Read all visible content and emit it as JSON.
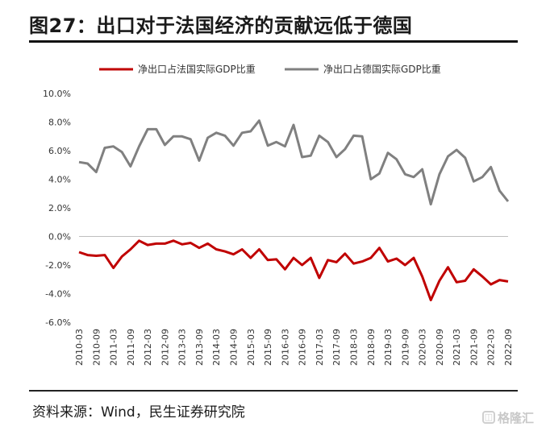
{
  "title": "图27：出口对于法国经济的贡献远低于德国",
  "source": "资料来源：Wind，民生证券研究院",
  "watermark": "格隆汇",
  "colors": {
    "france": "#c00000",
    "germany": "#808080",
    "axis": "#bfbfbf"
  },
  "chart_data": {
    "type": "line",
    "title": "",
    "xlabel": "",
    "ylabel": "",
    "ylim": [
      -6.0,
      10.0
    ],
    "yticks": [
      "10.0%",
      "8.0%",
      "6.0%",
      "4.0%",
      "2.0%",
      "0.0%",
      "-2.0%",
      "-4.0%",
      "-6.0%"
    ],
    "xtick_labels": [
      "2010-03",
      "2010-09",
      "2011-03",
      "2011-09",
      "2012-03",
      "2012-09",
      "2013-03",
      "2013-09",
      "2014-03",
      "2014-09",
      "2015-03",
      "2015-09",
      "2016-03",
      "2016-09",
      "2017-03",
      "2017-09",
      "2018-03",
      "2018-09",
      "2019-03",
      "2019-09",
      "2020-03",
      "2020-09",
      "2021-03",
      "2021-09",
      "2022-03",
      "2022-09"
    ],
    "x": [
      "2010-03",
      "2010-06",
      "2010-09",
      "2010-12",
      "2011-03",
      "2011-06",
      "2011-09",
      "2011-12",
      "2012-03",
      "2012-06",
      "2012-09",
      "2012-12",
      "2013-03",
      "2013-06",
      "2013-09",
      "2013-12",
      "2014-03",
      "2014-06",
      "2014-09",
      "2014-12",
      "2015-03",
      "2015-06",
      "2015-09",
      "2015-12",
      "2016-03",
      "2016-06",
      "2016-09",
      "2016-12",
      "2017-03",
      "2017-06",
      "2017-09",
      "2017-12",
      "2018-03",
      "2018-06",
      "2018-09",
      "2018-12",
      "2019-03",
      "2019-06",
      "2019-09",
      "2019-12",
      "2020-03",
      "2020-06",
      "2020-09",
      "2020-12",
      "2021-03",
      "2021-06",
      "2021-09",
      "2021-12",
      "2022-03",
      "2022-06",
      "2022-09"
    ],
    "legend_position": "top",
    "grid": false,
    "series": [
      {
        "name": "净出口占法国实际GDP比重",
        "values": [
          -1.1,
          -1.3,
          -1.35,
          -1.3,
          -2.2,
          -1.4,
          -0.9,
          -0.3,
          -0.6,
          -0.5,
          -0.5,
          -0.3,
          -0.55,
          -0.45,
          -0.8,
          -0.5,
          -0.9,
          -1.05,
          -1.25,
          -0.9,
          -1.5,
          -0.9,
          -1.65,
          -1.6,
          -2.3,
          -1.5,
          -2.0,
          -1.5,
          -2.9,
          -1.65,
          -1.8,
          -1.2,
          -1.9,
          -1.75,
          -1.5,
          -0.8,
          -1.75,
          -1.55,
          -2.0,
          -1.5,
          -2.8,
          -4.45,
          -3.1,
          -2.15,
          -3.2,
          -3.1,
          -2.3,
          -2.8,
          -3.35,
          -3.05,
          -3.15
        ]
      },
      {
        "name": "净出口占德国实际GDP比重",
        "values": [
          5.2,
          5.1,
          4.5,
          6.2,
          6.3,
          5.9,
          4.9,
          6.3,
          7.5,
          7.5,
          6.4,
          7.0,
          7.0,
          6.8,
          5.3,
          6.9,
          7.25,
          7.05,
          6.35,
          7.25,
          7.35,
          8.1,
          6.35,
          6.6,
          6.3,
          7.8,
          5.55,
          5.65,
          7.05,
          6.6,
          5.55,
          6.1,
          7.05,
          7.0,
          4.0,
          4.4,
          5.85,
          5.4,
          4.35,
          4.15,
          4.7,
          2.25,
          4.35,
          5.6,
          6.05,
          5.5,
          3.85,
          4.15,
          4.85,
          3.2,
          2.45
        ]
      }
    ]
  }
}
